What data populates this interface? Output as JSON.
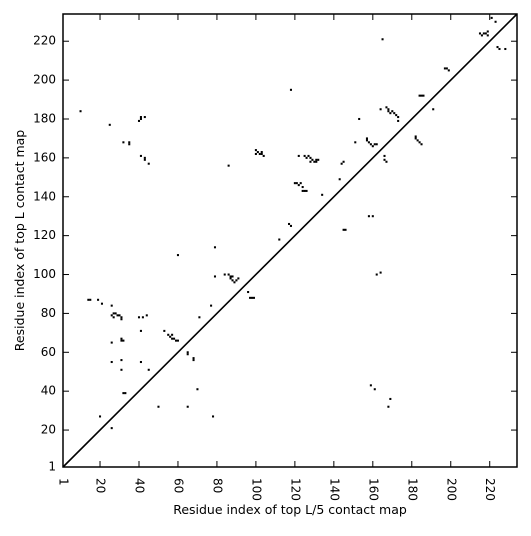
{
  "chart_data": {
    "type": "scatter",
    "title": "",
    "xlabel": "Residue index of top L/5 contact map",
    "ylabel": "Residue index of top L contact map",
    "xlim": [
      1,
      234
    ],
    "ylim": [
      1,
      234
    ],
    "xticks": [
      "1",
      "20",
      "40",
      "60",
      "80",
      "100",
      "120",
      "140",
      "160",
      "180",
      "200",
      "220"
    ],
    "yticks": [
      "1",
      "20",
      "40",
      "60",
      "80",
      "100",
      "120",
      "140",
      "160",
      "180",
      "200",
      "220"
    ],
    "xtick_rotation": -90,
    "grid": false,
    "marker": "square",
    "marker_color": "#000000",
    "diagonal": {
      "from": [
        1,
        1
      ],
      "to": [
        234,
        234
      ],
      "color": "#000000"
    },
    "series": [
      {
        "points": [
          [
            10,
            184
          ],
          [
            14,
            87
          ],
          [
            15,
            87
          ],
          [
            19,
            87
          ],
          [
            21,
            85
          ],
          [
            25,
            177
          ],
          [
            26,
            84
          ],
          [
            26,
            79
          ],
          [
            27,
            80
          ],
          [
            28,
            80
          ],
          [
            29,
            79
          ],
          [
            30,
            79
          ],
          [
            31,
            78
          ],
          [
            31,
            77
          ],
          [
            27,
            78
          ],
          [
            31,
            66
          ],
          [
            32,
            66
          ],
          [
            31,
            67
          ],
          [
            26,
            65
          ],
          [
            26,
            55
          ],
          [
            31,
            56
          ],
          [
            31,
            51
          ],
          [
            32,
            39
          ],
          [
            33,
            39
          ],
          [
            20,
            27
          ],
          [
            26,
            21
          ],
          [
            32,
            168
          ],
          [
            35,
            168
          ],
          [
            35,
            167
          ],
          [
            40,
            179
          ],
          [
            41,
            180
          ],
          [
            41,
            181
          ],
          [
            43,
            181
          ],
          [
            41,
            161
          ],
          [
            43,
            160
          ],
          [
            43,
            159
          ],
          [
            45,
            157
          ],
          [
            40,
            78
          ],
          [
            42,
            78
          ],
          [
            44,
            79
          ],
          [
            41,
            71
          ],
          [
            41,
            55
          ],
          [
            45,
            51
          ],
          [
            50,
            32
          ],
          [
            53,
            71
          ],
          [
            55,
            69
          ],
          [
            56,
            68
          ],
          [
            57,
            69
          ],
          [
            58,
            67
          ],
          [
            59,
            66
          ],
          [
            60,
            66
          ],
          [
            57,
            67
          ],
          [
            60,
            110
          ],
          [
            65,
            60
          ],
          [
            65,
            59
          ],
          [
            68,
            57
          ],
          [
            68,
            56
          ],
          [
            70,
            41
          ],
          [
            71,
            78
          ],
          [
            65,
            32
          ],
          [
            77,
            84
          ],
          [
            78,
            27
          ],
          [
            79,
            114
          ],
          [
            79,
            99
          ],
          [
            84,
            100
          ],
          [
            86,
            100
          ],
          [
            87,
            99
          ],
          [
            87,
            98
          ],
          [
            88,
            97
          ],
          [
            89,
            96
          ],
          [
            90,
            97
          ],
          [
            91,
            98
          ],
          [
            86,
            156
          ],
          [
            88,
            99
          ],
          [
            96,
            91
          ],
          [
            97,
            88
          ],
          [
            98,
            88
          ],
          [
            99,
            88
          ],
          [
            100,
            162
          ],
          [
            100,
            164
          ],
          [
            101,
            163
          ],
          [
            102,
            162
          ],
          [
            103,
            162
          ],
          [
            103,
            163
          ],
          [
            104,
            161
          ],
          [
            112,
            118
          ],
          [
            117,
            126
          ],
          [
            118,
            195
          ],
          [
            118,
            125
          ],
          [
            120,
            147
          ],
          [
            121,
            147
          ],
          [
            122,
            146
          ],
          [
            123,
            147
          ],
          [
            124,
            145
          ],
          [
            124,
            143
          ],
          [
            125,
            143
          ],
          [
            126,
            143
          ],
          [
            122,
            161
          ],
          [
            125,
            161
          ],
          [
            126,
            160
          ],
          [
            127,
            161
          ],
          [
            128,
            160
          ],
          [
            129,
            159
          ],
          [
            130,
            158
          ],
          [
            131,
            159
          ],
          [
            131,
            158
          ],
          [
            132,
            159
          ],
          [
            128,
            158
          ],
          [
            134,
            141
          ],
          [
            143,
            149
          ],
          [
            144,
            157
          ],
          [
            145,
            158
          ],
          [
            145,
            123
          ],
          [
            146,
            123
          ],
          [
            151,
            168
          ],
          [
            153,
            180
          ],
          [
            157,
            170
          ],
          [
            157,
            169
          ],
          [
            158,
            168
          ],
          [
            159,
            167
          ],
          [
            160,
            166
          ],
          [
            161,
            167
          ],
          [
            162,
            167
          ],
          [
            158,
            130
          ],
          [
            160,
            130
          ],
          [
            159,
            43
          ],
          [
            161,
            41
          ],
          [
            162,
            100
          ],
          [
            164,
            101
          ],
          [
            164,
            185
          ],
          [
            165,
            221
          ],
          [
            166,
            159
          ],
          [
            166,
            161
          ],
          [
            167,
            158
          ],
          [
            167,
            186
          ],
          [
            168,
            185
          ],
          [
            168,
            184
          ],
          [
            169,
            183
          ],
          [
            170,
            184
          ],
          [
            171,
            183
          ],
          [
            172,
            182
          ],
          [
            173,
            181
          ],
          [
            173,
            179
          ],
          [
            168,
            32
          ],
          [
            169,
            36
          ],
          [
            182,
            170
          ],
          [
            182,
            171
          ],
          [
            183,
            169
          ],
          [
            184,
            168
          ],
          [
            185,
            167
          ],
          [
            184,
            192
          ],
          [
            185,
            192
          ],
          [
            186,
            192
          ],
          [
            191,
            185
          ],
          [
            197,
            206
          ],
          [
            198,
            206
          ],
          [
            199,
            205
          ],
          [
            215,
            224
          ],
          [
            216,
            223
          ],
          [
            217,
            224
          ],
          [
            218,
            224
          ],
          [
            219,
            225
          ],
          [
            219,
            223
          ],
          [
            221,
            232
          ],
          [
            223,
            230
          ],
          [
            224,
            217
          ],
          [
            225,
            216
          ],
          [
            228,
            216
          ]
        ]
      }
    ]
  }
}
